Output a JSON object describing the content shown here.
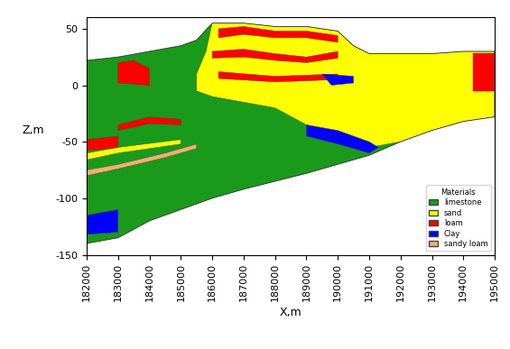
{
  "chart_data": {
    "type": "cross_section",
    "xlabel": "X,m",
    "ylabel": "Z,m",
    "xlim": [
      182000,
      195000
    ],
    "ylim": [
      -150,
      60
    ],
    "xticks": [
      182000,
      183000,
      184000,
      185000,
      186000,
      187000,
      188000,
      189000,
      190000,
      191000,
      192000,
      193000,
      194000,
      195000
    ],
    "yticks": [
      -150,
      -100,
      -50,
      0,
      50
    ],
    "legend": "lower right",
    "legend_title": "Materials",
    "series": [
      {
        "name": "limestone",
        "color": "#1a9a1a",
        "polygons": [
          {
            "x": [
              182000,
              183000,
              184000,
              185000,
              185500,
              186000,
              187000,
              188000,
              189000,
              190000,
              190500,
              191000,
              192000,
              193000,
              194000,
              195000,
              195000,
              194000,
              193000,
              192000,
              191000,
              190000,
              189000,
              188000,
              187000,
              186000,
              185000,
              184000,
              183000,
              182000
            ],
            "z": [
              22,
              25,
              30,
              35,
              40,
              55,
              55,
              52,
              52,
              48,
              35,
              28,
              28,
              28,
              30,
              30,
              -28,
              -32,
              -40,
              -50,
              -62,
              -70,
              -78,
              -85,
              -92,
              -100,
              -110,
              -120,
              -135,
              -140
            ]
          }
        ]
      },
      {
        "name": "sand",
        "color": "#ffff00",
        "polygons": [
          {
            "x": [
              185500,
              186000,
              187000,
              188000,
              189000,
              190000,
              191000,
              192000,
              193000,
              194000,
              195000,
              195000,
              194000,
              193000,
              192000,
              191000,
              190500,
              190000,
              189000,
              188000,
              187000,
              186000,
              185800,
              185500
            ],
            "z": [
              -5,
              -10,
              -15,
              -20,
              -35,
              -45,
              -55,
              -50,
              -40,
              -32,
              -28,
              30,
              30,
              28,
              28,
              28,
              35,
              48,
              52,
              52,
              55,
              55,
              30,
              10
            ]
          },
          {
            "x": [
              182000,
              183000,
              185000,
              185000,
              183000,
              182000
            ],
            "z": [
              -60,
              -55,
              -48,
              -52,
              -60,
              -66
            ]
          }
        ]
      },
      {
        "name": "loam",
        "color": "#ff0000",
        "polygons": [
          {
            "x": [
              186200,
              187000,
              188000,
              189000,
              190000,
              190000,
              189000,
              188000,
              187000,
              186200
            ],
            "z": [
              50,
              52,
              48,
              48,
              44,
              38,
              42,
              42,
              45,
              42
            ]
          },
          {
            "x": [
              186000,
              187000,
              188000,
              189000,
              190000,
              190000,
              189000,
              188000,
              187000,
              186000
            ],
            "z": [
              30,
              32,
              28,
              25,
              30,
              24,
              20,
              22,
              25,
              24
            ]
          },
          {
            "x": [
              186200,
              188000,
              190000,
              190000,
              188000,
              186200
            ],
            "z": [
              12,
              8,
              10,
              5,
              3,
              6
            ]
          },
          {
            "x": [
              183000,
              183500,
              184000,
              184000,
              183000
            ],
            "z": [
              20,
              22,
              15,
              0,
              2
            ]
          },
          {
            "x": [
              194300,
              195000,
              195000,
              194300
            ],
            "z": [
              28,
              28,
              -5,
              -5
            ]
          },
          {
            "x": [
              183000,
              184000,
              185000,
              185000,
              184000,
              183000
            ],
            "z": [
              -35,
              -28,
              -30,
              -35,
              -34,
              -40
            ]
          },
          {
            "x": [
              182000,
              183000,
              183000,
              182000
            ],
            "z": [
              -48,
              -45,
              -55,
              -58
            ]
          }
        ]
      },
      {
        "name": "Clay",
        "color": "#0000ff",
        "polygons": [
          {
            "x": [
              182000,
              183000,
              183000,
              182000
            ],
            "z": [
              -115,
              -110,
              -130,
              -132
            ]
          },
          {
            "x": [
              189000,
              190000,
              191000,
              191300,
              191000,
              190000,
              189000
            ],
            "z": [
              -35,
              -40,
              -50,
              -55,
              -60,
              -52,
              -45
            ]
          },
          {
            "x": [
              189500,
              190500,
              190500,
              189800
            ],
            "z": [
              10,
              8,
              2,
              0
            ]
          }
        ]
      },
      {
        "name": "sandy loam",
        "color": "#f0b070",
        "polygons": [
          {
            "x": [
              182000,
              183000,
              184500,
              185500,
              185500,
              184500,
              183000,
              182000
            ],
            "z": [
              -75,
              -70,
              -60,
              -52,
              -56,
              -64,
              -74,
              -80
            ]
          }
        ]
      }
    ]
  }
}
